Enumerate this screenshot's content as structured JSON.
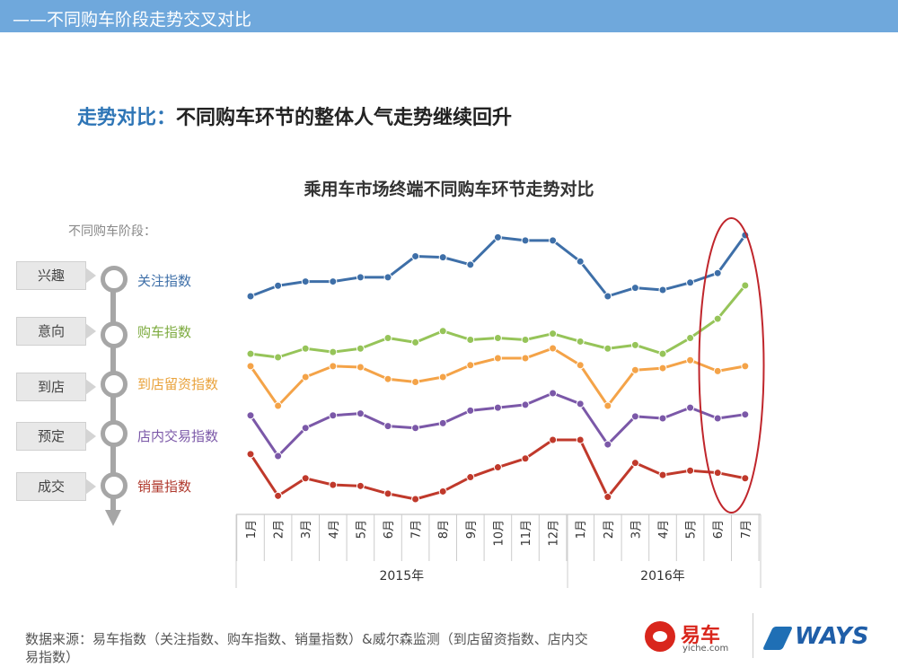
{
  "header": {
    "title": "——不同购车阶段走势交叉对比"
  },
  "subtitle": {
    "highlight": "走势对比：",
    "text": "不同购车环节的整体人气走势继续回升"
  },
  "stages": {
    "caption": "不同购车阶段：",
    "items": [
      "兴趣",
      "意向",
      "到店",
      "预定",
      "成交"
    ]
  },
  "chart_data": {
    "type": "line",
    "title": "乘用车市场终端不同购车环节走势对比",
    "x": [
      "1月",
      "2月",
      "3月",
      "4月",
      "5月",
      "6月",
      "7月",
      "8月",
      "9月",
      "10月",
      "11月",
      "12月",
      "1月",
      "2月",
      "3月",
      "4月",
      "5月",
      "6月",
      "7月"
    ],
    "year_groups": [
      {
        "label": "2015年",
        "count": 12
      },
      {
        "label": "2016年",
        "count": 7
      }
    ],
    "series": [
      {
        "name": "关注指数",
        "color": "#3e6fa8",
        "values": [
          52,
          62,
          66,
          66,
          70,
          70,
          90,
          89,
          82,
          108,
          105,
          105,
          85,
          52,
          60,
          58,
          65,
          74,
          110
        ]
      },
      {
        "name": "购车指数",
        "color": "#96c459",
        "values": [
          52,
          48,
          58,
          54,
          58,
          70,
          65,
          78,
          68,
          70,
          68,
          75,
          66,
          58,
          62,
          52,
          70,
          92,
          130
        ]
      },
      {
        "name": "到店留资指数",
        "color": "#f4a348",
        "values": [
          62,
          22,
          51,
          62,
          61,
          49,
          46,
          51,
          63,
          70,
          70,
          80,
          63,
          22,
          58,
          60,
          68,
          57,
          62
        ]
      },
      {
        "name": "店内交易指数",
        "color": "#7b58a8",
        "values": [
          60,
          18,
          47,
          60,
          62,
          49,
          47,
          52,
          65,
          68,
          71,
          83,
          72,
          30,
          59,
          57,
          68,
          57,
          61
        ]
      },
      {
        "name": "销量指数",
        "color": "#c0392b",
        "values": [
          60,
          22,
          38,
          32,
          31,
          24,
          19,
          26,
          39,
          48,
          56,
          73,
          73,
          21,
          52,
          41,
          45,
          43,
          38
        ]
      }
    ],
    "highlight": "2016年 6月-7月",
    "grid": false,
    "legend": "left"
  },
  "footer": {
    "source": "数据来源：易车指数（关注指数、购车指数、销量指数）&威尔森监测（到店留资指数、店内交易指数）"
  },
  "logos": {
    "yiche_name": "易车",
    "yiche_domain": "yiche.com",
    "ways": "WAYS"
  }
}
